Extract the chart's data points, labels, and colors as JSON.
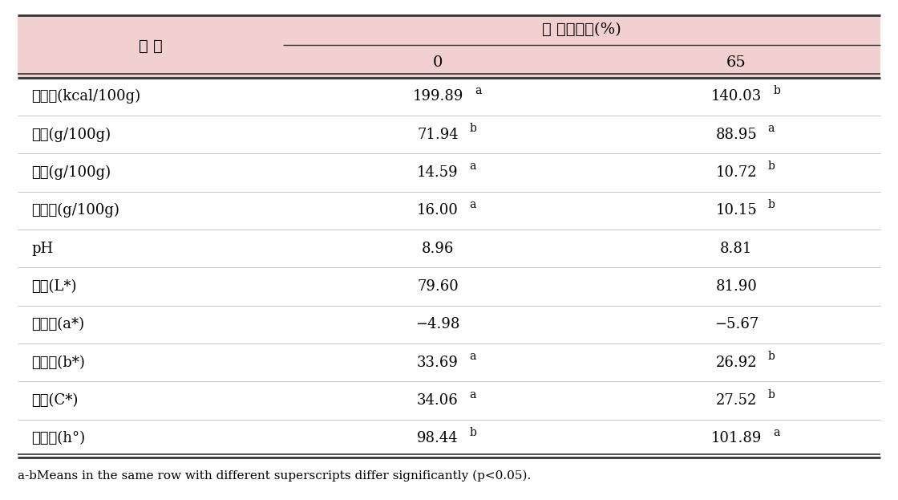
{
  "header_bg": "#f2d0d0",
  "outer_bg": "#ffffff",
  "header_main": "물 첨가수준(%)",
  "header_item": "항 목",
  "col_headers": [
    "0",
    "65"
  ],
  "rows": [
    {
      "label": "칼로리(kcal/100g)",
      "val0": "199.89",
      "sup0": "a",
      "val1": "140.03",
      "sup1": "b"
    },
    {
      "label": "수분(g/100g)",
      "val0": "71.94",
      "sup0": "b",
      "val1": "88.95",
      "sup1": "a"
    },
    {
      "label": "지방(g/100g)",
      "val0": "14.59",
      "sup0": "a",
      "val1": "10.72",
      "sup1": "b"
    },
    {
      "label": "단백질(g/100g)",
      "val0": "16.00",
      "sup0": "a",
      "val1": "10.15",
      "sup1": "b"
    },
    {
      "label": "pH",
      "val0": "8.96",
      "sup0": "",
      "val1": "8.81",
      "sup1": ""
    },
    {
      "label": "명도(L*)",
      "val0": "79.60",
      "sup0": "",
      "val1": "81.90",
      "sup1": ""
    },
    {
      "label": "적색도(a*)",
      "val0": "−4.98",
      "sup0": "",
      "val1": "−5.67",
      "sup1": ""
    },
    {
      "label": "황색도(b*)",
      "val0": "33.69",
      "sup0": "a",
      "val1": "26.92",
      "sup1": "b"
    },
    {
      "label": "체도(C*)",
      "val0": "34.06",
      "sup0": "a",
      "val1": "27.52",
      "sup1": "b"
    },
    {
      "label": "갈색도(h°)",
      "val0": "98.44",
      "sup0": "b",
      "val1": "101.89",
      "sup1": "a"
    }
  ],
  "footnote": "a-bMeans in the same row with different superscripts differ significantly (p<0.05).",
  "header_fontsize": 14,
  "cell_fontsize": 13,
  "footnote_fontsize": 11
}
